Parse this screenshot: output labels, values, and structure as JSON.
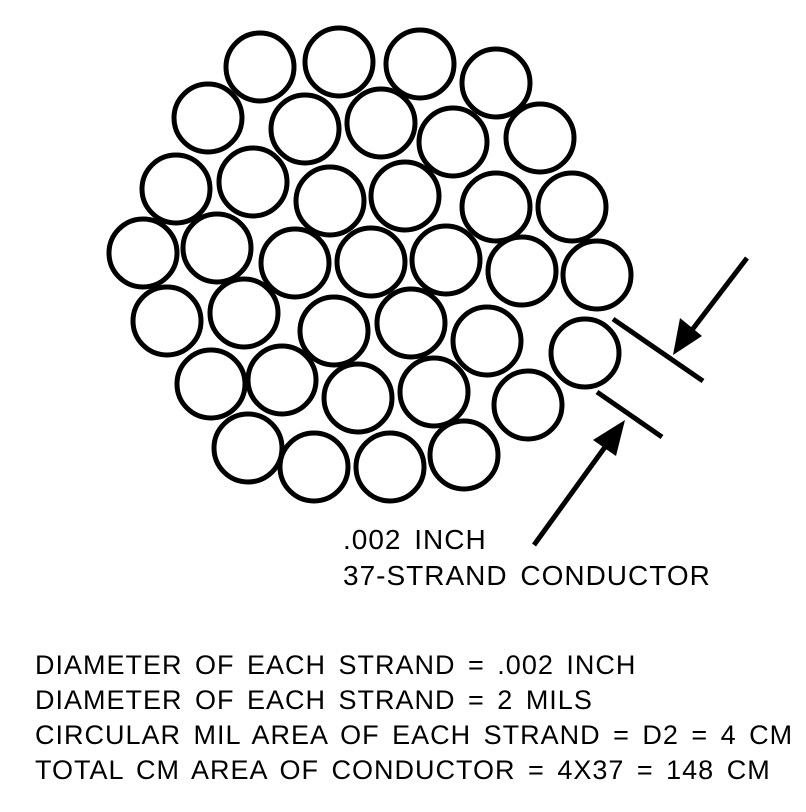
{
  "diagram": {
    "strand_count": 37,
    "callout": {
      "line1": ".002 INCH",
      "line2": "37-STRAND CONDUCTOR"
    }
  },
  "notes": [
    "DIAMETER OF EACH STRAND = .002 INCH",
    "DIAMETER OF EACH STRAND = 2 MILS",
    "CIRCULAR MIL AREA OF EACH STRAND = D2 = 4 CM",
    "TOTAL CM AREA OF CONDUCTOR = 4X37 = 148 CM"
  ],
  "colors": {
    "stroke": "#000000",
    "fill": "#ffffff",
    "text": "#000000"
  }
}
